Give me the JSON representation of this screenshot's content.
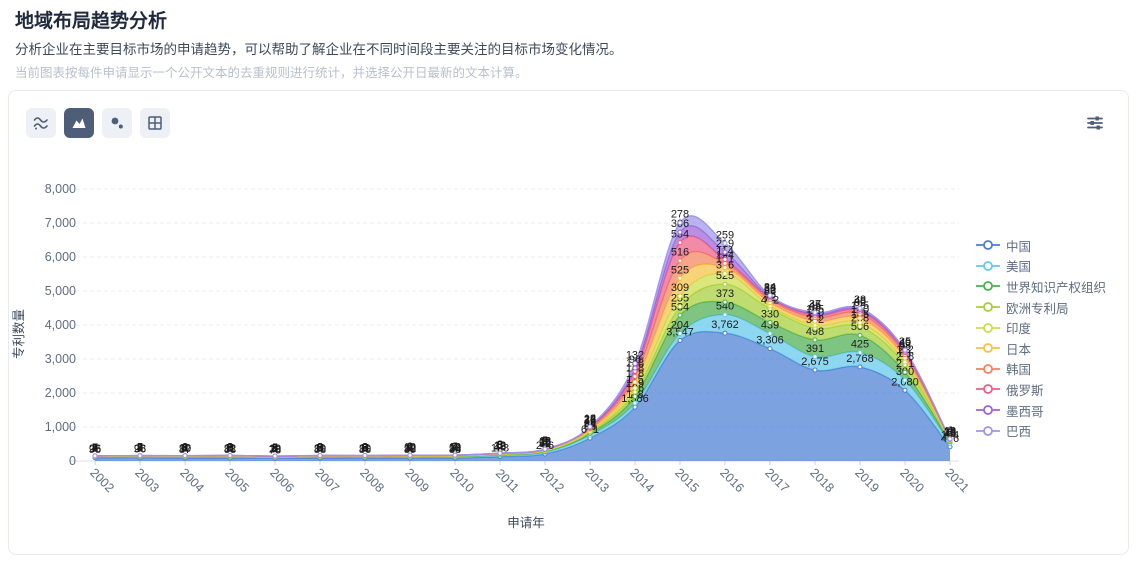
{
  "header": {
    "title": "地域布局趋势分析",
    "subtitle": "分析企业在主要目标市场的申请趋势，可以帮助了解企业在不同时间段主要关注的目标市场变化情况。",
    "note": "当前图表按每件申请显示一个公开文本的去重规则进行统计，并选择公开日最新的文本计算。"
  },
  "toolbar": {
    "chart_type_buttons": [
      {
        "name": "stream-chart",
        "active": false
      },
      {
        "name": "area-chart",
        "active": true
      },
      {
        "name": "scatter-chart",
        "active": false
      },
      {
        "name": "grid-view",
        "active": false
      }
    ],
    "settings_button": "chart-settings",
    "icon_color": "#4e5d78",
    "active_icon_color": "#ffffff"
  },
  "chart_data": {
    "type": "area",
    "stacked": true,
    "smooth": true,
    "title": "",
    "xlabel": "申请年",
    "ylabel": "专利数量",
    "ylim": [
      0,
      8000
    ],
    "y_tick_step": 1000,
    "grid": "horizontal-dashed",
    "legend_position": "right",
    "categories": [
      "2002",
      "2003",
      "2004",
      "2005",
      "2006",
      "2007",
      "2008",
      "2009",
      "2010",
      "2011",
      "2012",
      "2013",
      "2014",
      "2015",
      "2016",
      "2017",
      "2018",
      "2019",
      "2020",
      "2021"
    ],
    "series": [
      {
        "name": "中国",
        "color": "#4a7ed2",
        "values": [
          95,
          96,
          87,
          88,
          78,
          88,
          86,
          89,
          88,
          128,
          206,
          671,
          1586,
          3547,
          3762,
          3306,
          2675,
          2768,
          2080,
          416
        ]
      },
      {
        "name": "美国",
        "color": "#63c8ec",
        "values": [
          26,
          28,
          30,
          32,
          28,
          30,
          30,
          32,
          34,
          40,
          52,
          88,
          118,
          204,
          540,
          439,
          391,
          425,
          300,
          104
        ]
      },
      {
        "name": "世界知识产权组织",
        "color": "#4caf50",
        "values": [
          8,
          9,
          10,
          11,
          10,
          11,
          11,
          12,
          13,
          16,
          22,
          52,
          196,
          534,
          373,
          330,
          498,
          506,
          231,
          45
        ]
      },
      {
        "name": "欧洲专利局",
        "color": "#a6ce39",
        "values": [
          6,
          7,
          8,
          8,
          8,
          9,
          9,
          9,
          10,
          12,
          16,
          38,
          129,
          255,
          525,
          412,
          342,
          258,
          218,
          28
        ]
      },
      {
        "name": "印度",
        "color": "#cddc4a",
        "values": [
          2,
          2,
          3,
          3,
          3,
          3,
          3,
          4,
          4,
          5,
          8,
          22,
          115,
          309,
          316,
          72,
          85,
          105,
          88,
          18
        ]
      },
      {
        "name": "日本",
        "color": "#f6c244",
        "values": [
          7,
          8,
          9,
          9,
          8,
          9,
          9,
          10,
          10,
          12,
          16,
          45,
          178,
          525,
          171,
          98,
          120,
          140,
          112,
          14
        ]
      },
      {
        "name": "韩国",
        "color": "#f4835d",
        "values": [
          4,
          5,
          5,
          6,
          5,
          6,
          6,
          6,
          7,
          8,
          12,
          38,
          168,
          516,
          124,
          86,
          105,
          125,
          98,
          10
        ]
      },
      {
        "name": "俄罗斯",
        "color": "#ef5d85",
        "values": [
          2,
          2,
          3,
          3,
          3,
          3,
          3,
          4,
          4,
          5,
          8,
          25,
          148,
          534,
          114,
          52,
          68,
          82,
          62,
          6
        ]
      },
      {
        "name": "墨西哥",
        "color": "#a062d8",
        "values": [
          1,
          1,
          1,
          2,
          2,
          2,
          2,
          2,
          2,
          3,
          5,
          14,
          96,
          306,
          219,
          38,
          45,
          48,
          40,
          4
        ]
      },
      {
        "name": "巴西",
        "color": "#9e95ea",
        "values": [
          1,
          1,
          1,
          1,
          1,
          2,
          2,
          2,
          2,
          3,
          5,
          12,
          132,
          278,
          259,
          34,
          37,
          38,
          35,
          4
        ]
      }
    ]
  }
}
